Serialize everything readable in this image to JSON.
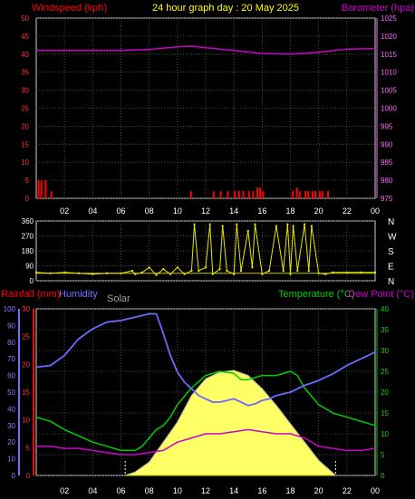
{
  "header": {
    "left_label": "Windspeed (kph)",
    "title": "24 hour graph day : 20 May 2025",
    "right_label": "Barometer (hpa)"
  },
  "legend3": {
    "rain": "Rainfall (mm)",
    "humidity": "Humidity",
    "solar": "Solar",
    "temperature": "Temperature (°C)",
    "dewpoint": "Dew Point (°C)"
  },
  "colors": {
    "background": "#000000",
    "grid": "#5a5a5a",
    "wind": "#ff0000",
    "barometer": "#cc00cc",
    "direction": "#e8e800",
    "humidity": "#6b6bff",
    "solar_fill": "#ffff66",
    "solar_curve": "#bbbbbb",
    "temperature": "#00cc00",
    "dewpoint": "#cc00cc",
    "rain_axis": "#ff0000",
    "humidity_axis": "#7070ff",
    "text_title": "#ffff00"
  },
  "chart_data": [
    {
      "type": "line",
      "panel": "wind-barometer",
      "x_ticks": [
        "02",
        "04",
        "06",
        "08",
        "10",
        "12",
        "14",
        "16",
        "18",
        "20",
        "22",
        "00"
      ],
      "left_axis": {
        "label": "Windspeed (kph)",
        "ticks": [
          0,
          5,
          10,
          15,
          20,
          25,
          30,
          35,
          40,
          45,
          50
        ],
        "ylim": [
          0,
          50
        ]
      },
      "right_axis": {
        "label": "Barometer (hpa)",
        "ticks": [
          975,
          980,
          985,
          990,
          995,
          1000,
          1005,
          1010,
          1015,
          1020,
          1025
        ],
        "ylim": [
          975,
          1025
        ]
      },
      "series": [
        {
          "name": "Barometer",
          "axis": "right",
          "x": [
            0,
            2,
            4,
            6,
            8,
            10,
            11,
            12,
            14,
            16,
            18,
            20,
            22,
            24
          ],
          "values": [
            1016.0,
            1016.0,
            1016.0,
            1016.0,
            1016.3,
            1017.0,
            1017.2,
            1016.8,
            1016.0,
            1015.2,
            1015.0,
            1015.5,
            1016.4,
            1016.5
          ]
        },
        {
          "name": "Windspeed",
          "axis": "left",
          "type": "bar",
          "x": [
            0.1,
            0.3,
            0.6,
            1.0,
            10.9,
            12.5,
            13.0,
            13.5,
            14.0,
            14.3,
            14.6,
            15.0,
            15.3,
            15.6,
            15.8,
            16.0,
            18.1,
            18.4,
            18.6,
            19.0,
            19.2,
            19.5,
            19.7,
            20.0,
            20.2,
            20.6
          ],
          "values": [
            5,
            5,
            5,
            2,
            2,
            2,
            2,
            2,
            2,
            2,
            2,
            2,
            2,
            3,
            3,
            2,
            2,
            3,
            2,
            2,
            2,
            2,
            2,
            2,
            2,
            2
          ]
        }
      ]
    },
    {
      "type": "scatter",
      "panel": "wind-direction",
      "y_ticks": [
        360,
        270,
        180,
        90,
        0
      ],
      "compass": [
        "N",
        "W",
        "S",
        "E",
        "N"
      ],
      "ylim": [
        0,
        360
      ],
      "x": [
        0,
        1,
        2,
        3,
        4,
        5,
        6,
        6.8,
        7,
        7.5,
        8,
        8.5,
        9,
        9.5,
        10,
        10.5,
        11,
        11.2,
        11.5,
        12,
        12.3,
        12.5,
        13,
        13.2,
        13.5,
        14,
        14.2,
        14.5,
        15,
        15.3,
        15.5,
        16,
        16.5,
        17,
        17.5,
        17.8,
        18,
        18.2,
        18.5,
        19,
        19.3,
        19.5,
        20,
        20.5,
        21,
        22,
        23,
        24
      ],
      "values": [
        50,
        45,
        50,
        45,
        40,
        45,
        45,
        60,
        40,
        50,
        80,
        35,
        70,
        40,
        80,
        40,
        60,
        340,
        60,
        80,
        340,
        40,
        70,
        330,
        60,
        40,
        340,
        60,
        300,
        80,
        340,
        40,
        60,
        330,
        60,
        340,
        40,
        330,
        60,
        340,
        60,
        330,
        45,
        40,
        50,
        50,
        50,
        50
      ]
    },
    {
      "type": "area",
      "panel": "temperature-humidity-solar",
      "x_ticks": [
        "02",
        "04",
        "06",
        "08",
        "10",
        "12",
        "14",
        "16",
        "18",
        "20",
        "22",
        "00"
      ],
      "rain_axis": {
        "label": "Rainfall (mm)",
        "ticks": [
          0,
          5,
          10,
          15,
          20,
          25,
          30
        ],
        "ylim": [
          0,
          30
        ]
      },
      "humidity_axis": {
        "label": "Humidity",
        "ticks": [
          0,
          10,
          20,
          30,
          40,
          50,
          60,
          70,
          80,
          90,
          100
        ],
        "ylim": [
          0,
          100
        ]
      },
      "temp_axis": {
        "label": "Temperature (°C)",
        "ticks": [
          0,
          5,
          10,
          15,
          20,
          25,
          30,
          35,
          40
        ],
        "ylim": [
          0,
          40
        ]
      },
      "series": [
        {
          "name": "Humidity",
          "axis": "humidity",
          "x": [
            0,
            1,
            2,
            3,
            4,
            5,
            6,
            7,
            8,
            8.5,
            9,
            9.5,
            10,
            10.5,
            11,
            11.5,
            12,
            12.5,
            13,
            13.5,
            14,
            14.5,
            15,
            15.5,
            16,
            16.5,
            17,
            18,
            19,
            20,
            21,
            22,
            23,
            24
          ],
          "values": [
            65,
            66,
            72,
            82,
            88,
            92,
            93,
            95,
            97,
            97,
            85,
            72,
            62,
            56,
            52,
            48,
            46,
            44,
            44,
            45,
            46,
            44,
            42,
            43,
            45,
            46,
            48,
            50,
            54,
            57,
            61,
            66,
            70,
            74
          ]
        },
        {
          "name": "Temperature",
          "axis": "temp",
          "x": [
            0,
            1,
            2,
            3,
            4,
            5,
            6,
            7,
            7.5,
            8,
            8.5,
            9,
            9.5,
            10,
            11,
            12,
            13,
            14,
            14.5,
            15,
            16,
            17,
            18,
            18.5,
            19,
            19.5,
            20,
            20.5,
            21,
            22,
            23,
            24
          ],
          "values": [
            14,
            13,
            11,
            9.5,
            8,
            7,
            6,
            6,
            7,
            9,
            11,
            12,
            14,
            17,
            21,
            24,
            25,
            24.5,
            23,
            23,
            24,
            24,
            25,
            24,
            21,
            19,
            17,
            16,
            15,
            14,
            13,
            12
          ]
        },
        {
          "name": "Dew Point",
          "axis": "temp",
          "x": [
            0,
            1,
            2,
            3,
            4,
            5,
            6,
            7,
            8,
            9,
            10,
            11,
            12,
            13,
            14,
            15,
            16,
            17,
            18,
            19,
            20,
            21,
            22,
            23,
            24
          ],
          "values": [
            7,
            7,
            6.5,
            6.5,
            6,
            5.5,
            5,
            5,
            5.5,
            6,
            8,
            9,
            10,
            10,
            10.5,
            11,
            10.5,
            10,
            10,
            9,
            7,
            6.5,
            6,
            6,
            6.5
          ]
        },
        {
          "name": "Solar",
          "axis": "humidity",
          "x": [
            6.3,
            7,
            8,
            9,
            10,
            11,
            12,
            13,
            14,
            15,
            16,
            17,
            18,
            19,
            20,
            21.2
          ],
          "values": [
            0,
            2,
            8,
            20,
            32,
            48,
            58,
            62,
            63,
            60,
            52,
            42,
            31,
            20,
            9,
            0
          ]
        }
      ]
    }
  ]
}
